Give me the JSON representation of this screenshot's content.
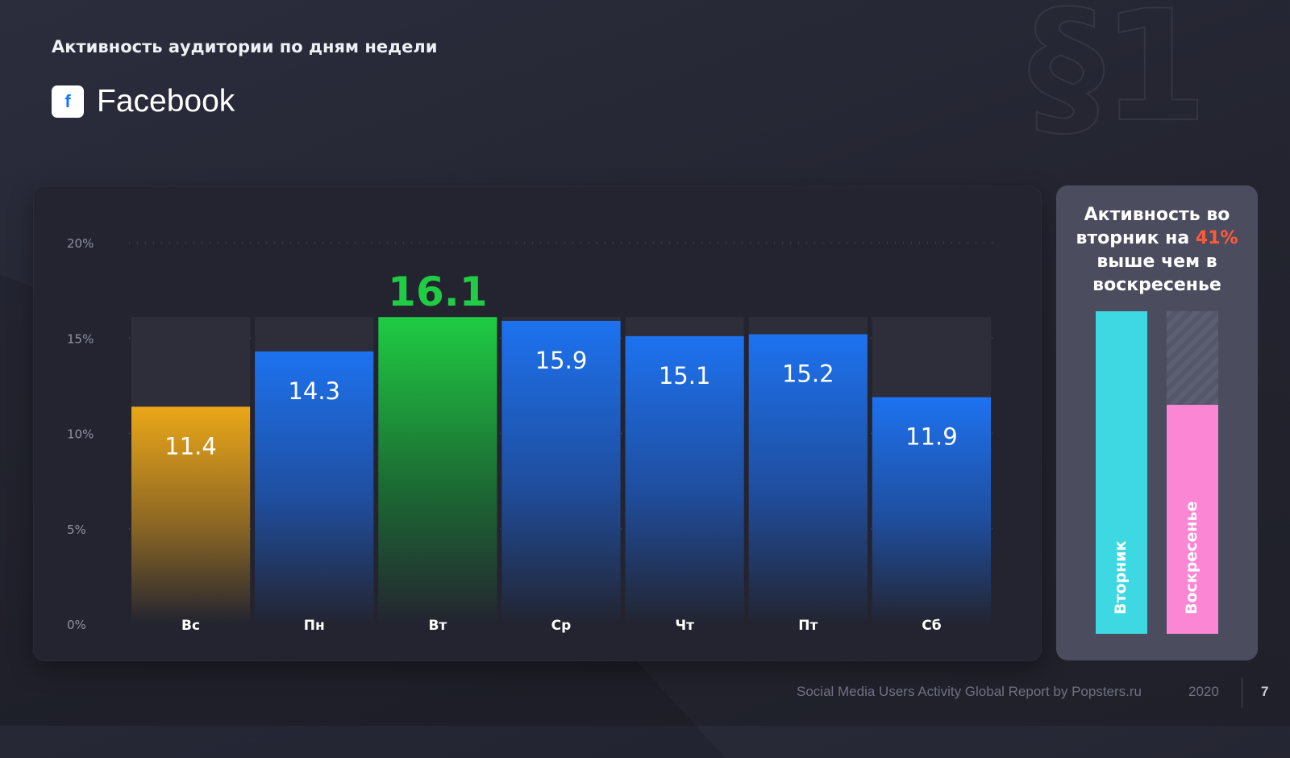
{
  "header": {
    "subtitle": "Активность аудитории по дням недели",
    "brand_icon": "facebook-icon",
    "brand_icon_glyph": "f",
    "brand_name": "Facebook",
    "watermark": "§1"
  },
  "chart_data": {
    "type": "bar",
    "categories": [
      "Вс",
      "Пн",
      "Вт",
      "Ср",
      "Чт",
      "Пт",
      "Сб"
    ],
    "values": [
      11.4,
      14.3,
      16.1,
      15.9,
      15.1,
      15.2,
      11.9
    ],
    "value_labels": [
      "11.4",
      "14.3",
      "16.1",
      "15.9",
      "15.1",
      "15.2",
      "11.9"
    ],
    "ylim": [
      0,
      20
    ],
    "yticks": [
      0,
      5,
      10,
      15,
      20
    ],
    "ytick_labels": [
      "0%",
      "5%",
      "10%",
      "15%",
      "20%"
    ],
    "highlight_index": 2,
    "colors": {
      "default": "#1d72f0",
      "minimum": "#eba718",
      "maximum": "#1fcc43",
      "background_track": "#2d2e3a"
    },
    "grid": true
  },
  "side_panel": {
    "text_part1": "Активность во вторник на ",
    "highlight": "41%",
    "text_part2": " выше чем в воскресенье",
    "bar_tuesday_label": "Вторник",
    "bar_sunday_label": "Воскресенье",
    "colors": {
      "tuesday": "#3dd8e2",
      "sunday": "#fb86d4",
      "highlight": "#ff5a3c"
    }
  },
  "footer": {
    "report_title": "Social Media Users Activity Global Report by Popsters.ru",
    "year": "2020",
    "page_number": "7"
  }
}
